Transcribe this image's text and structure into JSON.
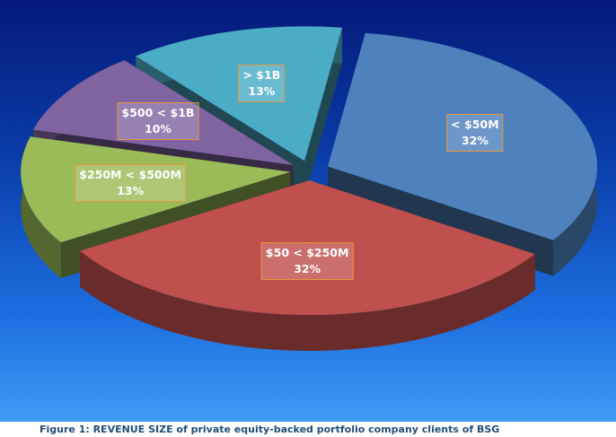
{
  "chart_data": {
    "type": "pie",
    "title": "",
    "slices": [
      {
        "label": "< $50M",
        "pct_label": "32%",
        "value": 32,
        "color": "#4f81bd"
      },
      {
        "label": "$50 < $250M",
        "pct_label": "32%",
        "value": 32,
        "color": "#c0504d"
      },
      {
        "label": "$250M < $500M",
        "pct_label": "13%",
        "value": 13,
        "color": "#9bbb59"
      },
      {
        "label": "$500 < $1B",
        "pct_label": "10%",
        "value": 10,
        "color": "#8064a2"
      },
      {
        "label": "> $1B",
        "pct_label": "13%",
        "value": 13,
        "color": "#4bacc6"
      }
    ],
    "exploded": true,
    "style": "3d"
  },
  "caption": "Figure 1: REVENUE SIZE of private equity-backed portfolio company clients of BSG"
}
